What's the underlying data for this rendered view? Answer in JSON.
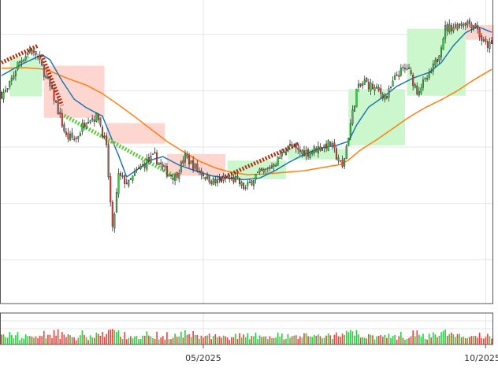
{
  "colors": {
    "up": "#2ecc40",
    "down": "#e8453c",
    "wick": "#333333",
    "ma_fast": "#1f77b4",
    "ma_slow": "#ff7f0e",
    "trend_up": "#b22b0e",
    "trend_down": "#5cc93a",
    "zone_up": "#ccf7cc",
    "zone_down": "#fdd6d0",
    "grid": "#e4e4e4",
    "frame": "#555555"
  },
  "chart_data": {
    "type": "candlestick",
    "title": "",
    "xlabel": "",
    "ylabel": "",
    "grid": true,
    "legend": "none",
    "x_ticks": [
      {
        "label": "05/2025",
        "index": 100
      },
      {
        "label": "10/2025",
        "index": 240
      }
    ],
    "ylim": [
      0,
      100
    ],
    "volume_panel": true,
    "ohlc": {
      "count": 244,
      "closes_key": [
        [
          0,
          68.9
        ],
        [
          3,
          70.2
        ],
        [
          8,
          79.5
        ],
        [
          14,
          84.4
        ],
        [
          17,
          83.1
        ],
        [
          21,
          76.6
        ],
        [
          26,
          67.5
        ],
        [
          32,
          53.6
        ],
        [
          37,
          52.9
        ],
        [
          42,
          60.1
        ],
        [
          48,
          60.7
        ],
        [
          52,
          49.4
        ],
        [
          55,
          20.2
        ],
        [
          58,
          39.7
        ],
        [
          63,
          36.9
        ],
        [
          67,
          41.3
        ],
        [
          72,
          44.8
        ],
        [
          76,
          46.6
        ],
        [
          81,
          41.4
        ],
        [
          86,
          39.4
        ],
        [
          91,
          46.4
        ],
        [
          96,
          42.8
        ],
        [
          101,
          39.7
        ],
        [
          106,
          37.4
        ],
        [
          111,
          38.7
        ],
        [
          116,
          38.4
        ],
        [
          121,
          35.2
        ],
        [
          126,
          40.0
        ],
        [
          131,
          41.6
        ],
        [
          137,
          45.4
        ],
        [
          142,
          50.7
        ],
        [
          147,
          48.4
        ],
        [
          152,
          48.2
        ],
        [
          157,
          49.7
        ],
        [
          163,
          51.2
        ],
        [
          169,
          42.6
        ],
        [
          172,
          54.2
        ],
        [
          176,
          70.1
        ],
        [
          180,
          73.1
        ],
        [
          186,
          70.2
        ],
        [
          191,
          67.8
        ],
        [
          196,
          75.8
        ],
        [
          201,
          78.3
        ],
        [
          206,
          70.1
        ],
        [
          212,
          75.0
        ],
        [
          216,
          81.3
        ],
        [
          220,
          92.1
        ],
        [
          225,
          93.1
        ],
        [
          230,
          94.5
        ],
        [
          235,
          93.2
        ],
        [
          239,
          86.6
        ],
        [
          243,
          86.0
        ]
      ]
    },
    "ma_fast": [
      [
        0,
        75.4
      ],
      [
        10,
        79.4
      ],
      [
        20,
        82.8
      ],
      [
        24,
        81.0
      ],
      [
        30,
        73.5
      ],
      [
        36,
        67.0
      ],
      [
        42,
        64.0
      ],
      [
        50,
        61.0
      ],
      [
        54,
        54.0
      ],
      [
        58,
        47.0
      ],
      [
        62,
        39.4
      ],
      [
        68,
        42.4
      ],
      [
        74,
        45.4
      ],
      [
        80,
        46.6
      ],
      [
        88,
        43.6
      ],
      [
        96,
        41.6
      ],
      [
        104,
        39.8
      ],
      [
        112,
        39.0
      ],
      [
        120,
        38.4
      ],
      [
        128,
        39.0
      ],
      [
        136,
        41.8
      ],
      [
        142,
        44.4
      ],
      [
        150,
        47.4
      ],
      [
        158,
        49.6
      ],
      [
        166,
        50.6
      ],
      [
        172,
        52.0
      ],
      [
        176,
        57.8
      ],
      [
        182,
        64.2
      ],
      [
        190,
        68.2
      ],
      [
        196,
        71.6
      ],
      [
        204,
        74.5
      ],
      [
        212,
        76.5
      ],
      [
        218,
        80.0
      ],
      [
        224,
        86.0
      ],
      [
        230,
        90.6
      ],
      [
        236,
        92.8
      ],
      [
        243,
        90.8
      ]
    ],
    "ma_slow": [
      [
        0,
        78.0
      ],
      [
        12,
        78.2
      ],
      [
        22,
        77.6
      ],
      [
        32,
        74.6
      ],
      [
        42,
        72.0
      ],
      [
        50,
        69.0
      ],
      [
        58,
        65.0
      ],
      [
        66,
        60.8
      ],
      [
        74,
        56.4
      ],
      [
        82,
        52.0
      ],
      [
        90,
        48.4
      ],
      [
        98,
        45.0
      ],
      [
        106,
        42.6
      ],
      [
        114,
        41.0
      ],
      [
        122,
        40.2
      ],
      [
        130,
        40.4
      ],
      [
        140,
        41.0
      ],
      [
        150,
        41.6
      ],
      [
        158,
        42.6
      ],
      [
        168,
        43.8
      ],
      [
        172,
        45.4
      ],
      [
        178,
        49.0
      ],
      [
        186,
        52.6
      ],
      [
        194,
        56.6
      ],
      [
        202,
        60.6
      ],
      [
        210,
        64.0
      ],
      [
        218,
        66.8
      ],
      [
        226,
        70.0
      ],
      [
        234,
        73.8
      ],
      [
        243,
        77.6
      ]
    ],
    "trend_lines": [
      {
        "kind": "up",
        "from": [
          0,
          80.0
        ],
        "to": [
          18,
          86.0
        ]
      },
      {
        "kind": "up",
        "from": [
          20,
          82.6
        ],
        "to": [
          30,
          64.8
        ]
      },
      {
        "kind": "down",
        "from": [
          31,
          61.2
        ],
        "to": [
          86,
          39.6
        ]
      },
      {
        "kind": "up",
        "from": [
          108,
          38.6
        ],
        "to": [
          148,
          51.4
        ]
      }
    ],
    "zones": [
      {
        "kind": "up",
        "x0": 4,
        "x1": 20,
        "y0": 68.0,
        "y1": 82.0
      },
      {
        "kind": "down",
        "x0": 21,
        "x1": 51,
        "y0": 60.4,
        "y1": 78.9
      },
      {
        "kind": "down",
        "x0": 52,
        "x1": 81,
        "y0": 51.2,
        "y1": 58.5
      },
      {
        "kind": "down",
        "x0": 82,
        "x1": 111,
        "y0": 39.8,
        "y1": 47.5
      },
      {
        "kind": "up",
        "x0": 112,
        "x1": 141,
        "y0": 38.6,
        "y1": 45.2
      },
      {
        "kind": "up",
        "x0": 142,
        "x1": 172,
        "y0": 45.6,
        "y1": 49.3
      },
      {
        "kind": "up",
        "x0": 172,
        "x1": 200,
        "y0": 50.6,
        "y1": 70.6
      },
      {
        "kind": "up",
        "x0": 201,
        "x1": 230,
        "y0": 68.2,
        "y1": 92.0
      },
      {
        "kind": "down",
        "x0": 230,
        "x1": 244,
        "y0": 88.1,
        "y1": 93.3
      }
    ]
  }
}
